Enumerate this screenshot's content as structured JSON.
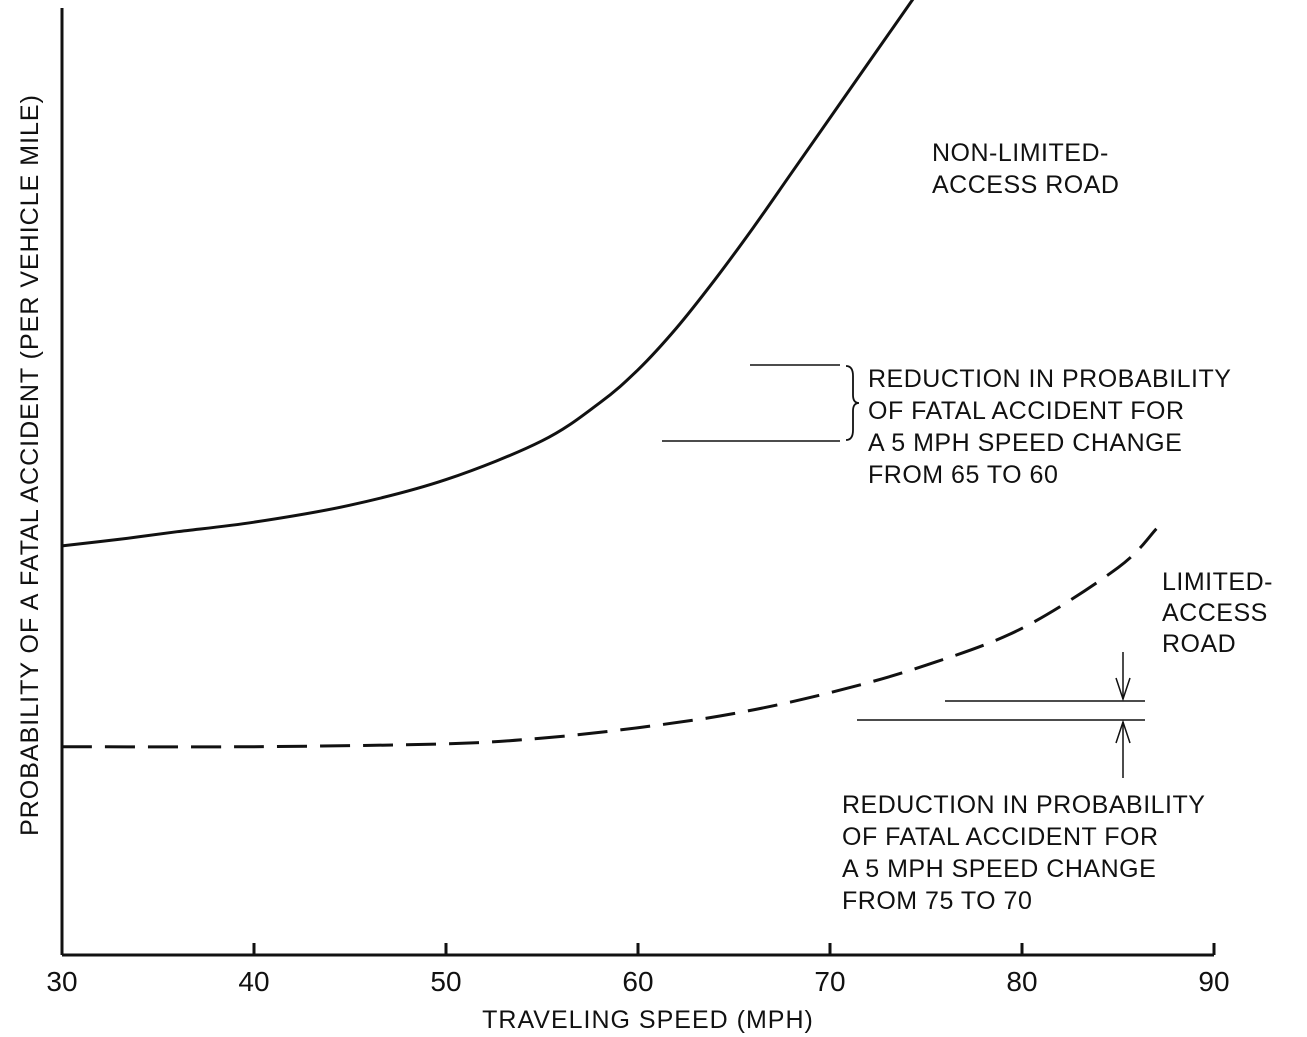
{
  "chart_data": {
    "type": "line",
    "title": "",
    "xlabel": "TRAVELING SPEED (MPH)",
    "ylabel": "PROBABILITY OF A FATAL ACCIDENT (PER VEHICLE MILE)",
    "xlim": [
      30,
      90
    ],
    "ylim": [
      0,
      100
    ],
    "x_ticks": [
      30,
      40,
      50,
      60,
      70,
      80,
      90
    ],
    "x_tick_labels": [
      "30",
      "40",
      "50",
      "60",
      "70",
      "80",
      "90"
    ],
    "y_tick_labels": [],
    "grid": false,
    "colors": {
      "line": "#111111",
      "background": "#ffffff"
    },
    "series": [
      {
        "name": "NON-LIMITED- ACCESS ROAD",
        "style": "solid",
        "x": [
          30,
          33,
          36,
          40,
          45,
          50,
          55,
          58,
          60,
          62,
          64,
          66,
          68,
          70,
          72,
          75
        ],
        "y": [
          43.2,
          43.9,
          44.7,
          45.7,
          47.5,
          50.2,
          54.3,
          58.3,
          61.8,
          66.2,
          71.3,
          76.8,
          82.6,
          88.4,
          94.2,
          102.9
        ]
      },
      {
        "name": "LIMITED- ACCESS ROAD",
        "style": "dashed",
        "x": [
          30,
          40,
          50,
          55,
          60,
          65,
          70,
          75,
          80,
          85,
          87
        ],
        "y": [
          22.0,
          22.0,
          22.3,
          22.9,
          24.0,
          25.5,
          27.7,
          30.6,
          34.5,
          40.9,
          45.0
        ]
      }
    ],
    "annotations": [
      {
        "lines": [
          "REDUCTION IN PROBABILITY",
          "OF FATAL ACCIDENT FOR",
          "A 5 MPH SPEED CHANGE",
          "FROM 65 TO 60"
        ],
        "refers_to": "NON-LIMITED- ACCESS ROAD",
        "from_x": 65,
        "to_x": 60
      },
      {
        "lines": [
          "REDUCTION IN PROBABILITY",
          "OF FATAL ACCIDENT FOR",
          "A 5 MPH SPEED CHANGE",
          "FROM 75 TO 70"
        ],
        "refers_to": "LIMITED- ACCESS ROAD",
        "from_x": 75,
        "to_x": 70
      }
    ],
    "series_labels": [
      {
        "series": 0,
        "lines": [
          "NON-LIMITED-",
          "ACCESS ROAD"
        ]
      },
      {
        "series": 1,
        "lines": [
          "LIMITED-",
          "ACCESS",
          "ROAD"
        ]
      }
    ]
  }
}
